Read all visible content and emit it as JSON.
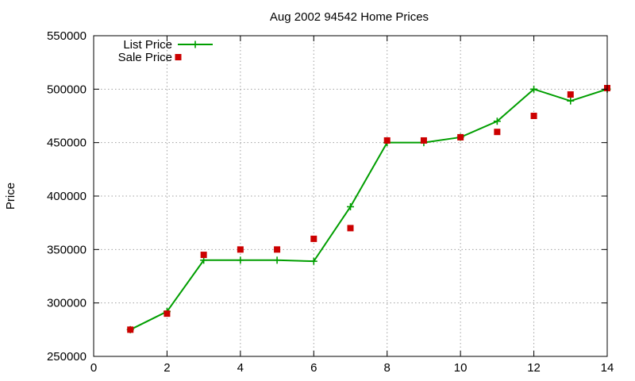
{
  "chart_data": {
    "type": "line",
    "title": "Aug 2002 94542 Home Prices",
    "xlabel": "",
    "ylabel": "Price",
    "xlim": [
      0,
      14
    ],
    "ylim": [
      250000,
      550000
    ],
    "x_ticks": [
      0,
      2,
      4,
      6,
      8,
      10,
      12,
      14
    ],
    "y_ticks": [
      250000,
      300000,
      350000,
      400000,
      450000,
      500000,
      550000
    ],
    "grid": true,
    "legend_position": "top-left",
    "series": [
      {
        "name": "List Price",
        "style": "linespoints",
        "marker": "plus",
        "color": "#009e00",
        "x": [
          1,
          2,
          3,
          4,
          5,
          6,
          7,
          8,
          9,
          10,
          11,
          12,
          13,
          14
        ],
        "y": [
          275000,
          292000,
          340000,
          340000,
          340000,
          339000,
          390000,
          450000,
          450000,
          455000,
          470000,
          500000,
          489000,
          500000
        ]
      },
      {
        "name": "Sale Price",
        "style": "points",
        "marker": "square",
        "color": "#cc0000",
        "x": [
          1,
          2,
          3,
          4,
          5,
          6,
          7,
          8,
          9,
          10,
          11,
          12,
          13,
          14
        ],
        "y": [
          275000,
          290000,
          345000,
          350000,
          350000,
          360000,
          370000,
          452000,
          452000,
          455000,
          460000,
          475000,
          495000,
          501000
        ]
      }
    ]
  }
}
